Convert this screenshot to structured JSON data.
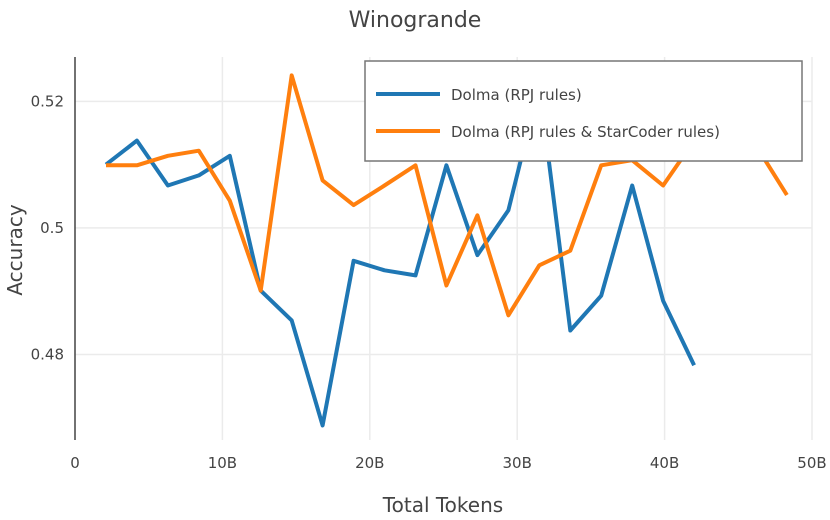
{
  "chart_data": {
    "type": "line",
    "title": "Winogrande",
    "xlabel": "Total Tokens",
    "ylabel": "Accuracy",
    "xlim": [
      0,
      50
    ],
    "ylim": [
      0.4665,
      0.527
    ],
    "grid": true,
    "legend_position": "top-right",
    "x_ticks": [
      {
        "value": 0,
        "label": "0"
      },
      {
        "value": 10,
        "label": "10B"
      },
      {
        "value": 20,
        "label": "20B"
      },
      {
        "value": 30,
        "label": "30B"
      },
      {
        "value": 40,
        "label": "40B"
      },
      {
        "value": 50,
        "label": "50B"
      }
    ],
    "y_ticks": [
      {
        "value": 0.48,
        "label": "0.48"
      },
      {
        "value": 0.5,
        "label": "0.5"
      },
      {
        "value": 0.52,
        "label": "0.52"
      }
    ],
    "series": [
      {
        "name": "Dolma (RPJ rules)",
        "color": "#1f77b4",
        "x": [
          2.1,
          4.2,
          6.3,
          8.4,
          10.5,
          12.6,
          14.7,
          16.8,
          18.9,
          21.0,
          23.1,
          25.2,
          27.3,
          29.4,
          31.5,
          33.6,
          35.7,
          37.8,
          39.9,
          42.0
        ],
        "y": [
          0.51,
          0.5138,
          0.5067,
          0.5083,
          0.5114,
          0.4901,
          0.4854,
          0.4688,
          0.4948,
          0.4933,
          0.4925,
          0.5099,
          0.4957,
          0.5028,
          0.5225,
          0.4838,
          0.4893,
          0.5067,
          0.4885,
          0.4783
        ]
      },
      {
        "name": "Dolma (RPJ rules & StarCoder rules)",
        "color": "#ff7f0e",
        "x": [
          2.1,
          4.2,
          6.3,
          8.4,
          10.5,
          12.6,
          14.7,
          16.8,
          18.9,
          21.0,
          23.1,
          25.2,
          27.3,
          29.4,
          31.5,
          33.6,
          35.7,
          37.8,
          39.9,
          42.0,
          44.1,
          46.2,
          48.3
        ],
        "y": [
          0.5099,
          0.5099,
          0.5114,
          0.5122,
          0.5043,
          0.4901,
          0.5241,
          0.5075,
          0.5036,
          0.5067,
          0.5099,
          0.4909,
          0.502,
          0.4862,
          0.4941,
          0.4964,
          0.5099,
          0.5107,
          0.5067,
          0.5138,
          0.5122,
          0.513,
          0.5052
        ]
      }
    ]
  }
}
